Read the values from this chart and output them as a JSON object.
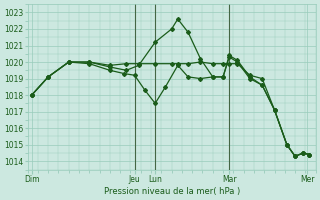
{
  "background_color": "#cce8e0",
  "grid_color": "#99ccbb",
  "line_color": "#1a5c1a",
  "marker_color": "#1a5c1a",
  "xlabel_text": "Pression niveau de la mer( hPa )",
  "ylim": [
    1013.5,
    1023.5
  ],
  "yticks": [
    1014,
    1015,
    1016,
    1017,
    1018,
    1019,
    1020,
    1021,
    1022,
    1023
  ],
  "xlim": [
    0,
    7.0
  ],
  "day_ticks": [
    0.1,
    2.6,
    3.1,
    4.9,
    6.8
  ],
  "day_labels": [
    "Dim",
    "Jeu",
    "Lun",
    "Mar",
    "Mer"
  ],
  "day_lines": [
    2.6,
    3.1,
    4.9
  ],
  "day_line_color": "#446644",
  "series": [
    {
      "x": [
        0.1,
        0.5,
        1.0,
        1.5,
        2.0,
        2.4,
        2.7,
        3.1,
        3.5,
        3.65,
        3.9,
        4.2,
        4.5,
        4.75,
        4.9,
        5.1,
        5.4,
        5.7,
        6.0,
        6.3,
        6.5,
        6.7,
        6.85
      ],
      "y": [
        1018.0,
        1019.1,
        1020.0,
        1020.0,
        1019.7,
        1019.5,
        1019.8,
        1021.2,
        1022.0,
        1022.6,
        1021.8,
        1020.2,
        1019.1,
        1019.1,
        1020.4,
        1020.1,
        1019.1,
        1018.6,
        1017.1,
        1015.0,
        1014.3,
        1014.5,
        1014.4
      ]
    },
    {
      "x": [
        0.1,
        0.5,
        1.0,
        1.5,
        2.0,
        2.4,
        2.7,
        3.1,
        3.5,
        3.65,
        3.9,
        4.2,
        4.5,
        4.75,
        4.9,
        5.1,
        5.4,
        5.7,
        6.0,
        6.3,
        6.5,
        6.7,
        6.85
      ],
      "y": [
        1018.0,
        1019.1,
        1020.0,
        1020.0,
        1019.8,
        1019.9,
        1019.9,
        1019.9,
        1019.9,
        1019.9,
        1019.9,
        1020.0,
        1019.9,
        1019.9,
        1019.9,
        1019.9,
        1019.2,
        1019.0,
        1017.1,
        1015.0,
        1014.3,
        1014.5,
        1014.4
      ]
    },
    {
      "x": [
        0.1,
        0.5,
        1.0,
        1.5,
        2.0,
        2.35,
        2.6,
        2.85,
        3.1,
        3.35,
        3.65,
        3.9,
        4.2,
        4.5,
        4.75,
        4.9,
        5.1,
        5.4,
        5.7,
        6.0,
        6.3,
        6.5,
        6.7,
        6.85
      ],
      "y": [
        1018.0,
        1019.1,
        1020.0,
        1019.9,
        1019.5,
        1019.3,
        1019.2,
        1018.3,
        1017.5,
        1018.5,
        1019.8,
        1019.1,
        1019.0,
        1019.1,
        1019.1,
        1020.3,
        1020.0,
        1019.0,
        1018.6,
        1017.1,
        1015.0,
        1014.3,
        1014.5,
        1014.4
      ]
    }
  ]
}
